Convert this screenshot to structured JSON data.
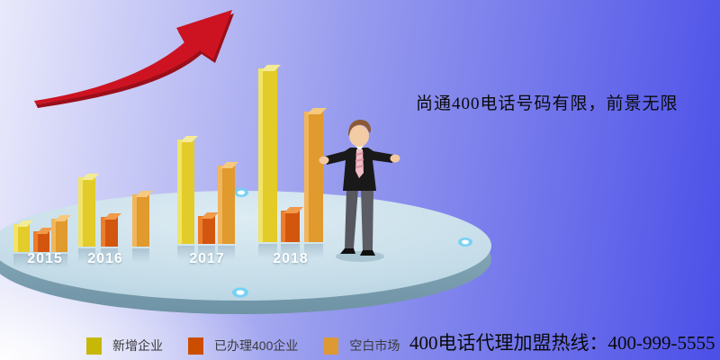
{
  "headline": "尚通400电话号码有限，前景无限",
  "hotline": "400电话代理加盟热线：400-999-5555",
  "chart_data": {
    "type": "bar",
    "title": "",
    "xlabel": "",
    "ylabel": "",
    "ylim": [
      0,
      100
    ],
    "grid": false,
    "legend_position": "bottom",
    "categories": [
      "2015",
      "2016",
      "2017",
      "2018"
    ],
    "series": [
      {
        "name": "新增企业",
        "values": [
          16,
          40,
          60,
          100
        ],
        "color_main": "#e3cb2a",
        "color_light": "#f1e468",
        "color_top": "#f3eb96"
      },
      {
        "name": "已办理400企业",
        "values": [
          12,
          17,
          16,
          18
        ],
        "color_main": "#d3560e",
        "color_light": "#ec7d2c",
        "color_top": "#f09a4a"
      },
      {
        "name": "空白市场",
        "values": [
          19,
          30,
          45,
          75
        ],
        "color_main": "#e09a2d",
        "color_light": "#f2b55c",
        "color_top": "#f5c97e"
      }
    ]
  },
  "legend": {
    "items": [
      {
        "label": "新增企业",
        "color": "#c6b806"
      },
      {
        "label": "已办理400企业",
        "color": "#cc4d00"
      },
      {
        "label": "空白市场",
        "color": "#dd9933"
      }
    ]
  },
  "colors": {
    "background_left": "#efeffc",
    "background_right": "#4b4fe8",
    "arrow_red": "#cd1321",
    "arrow_shadow": "#9a0f1a",
    "disc_top": "#c4dce8",
    "disc_rim": "#7fa1b1",
    "text_black": "#0a0a0a",
    "year_label_white": "#ffffff"
  },
  "decorations": {
    "arrow": "growth-arrow",
    "person": "businessman-presenting",
    "platform": "ellipse-platform",
    "glow_dots": 3
  }
}
